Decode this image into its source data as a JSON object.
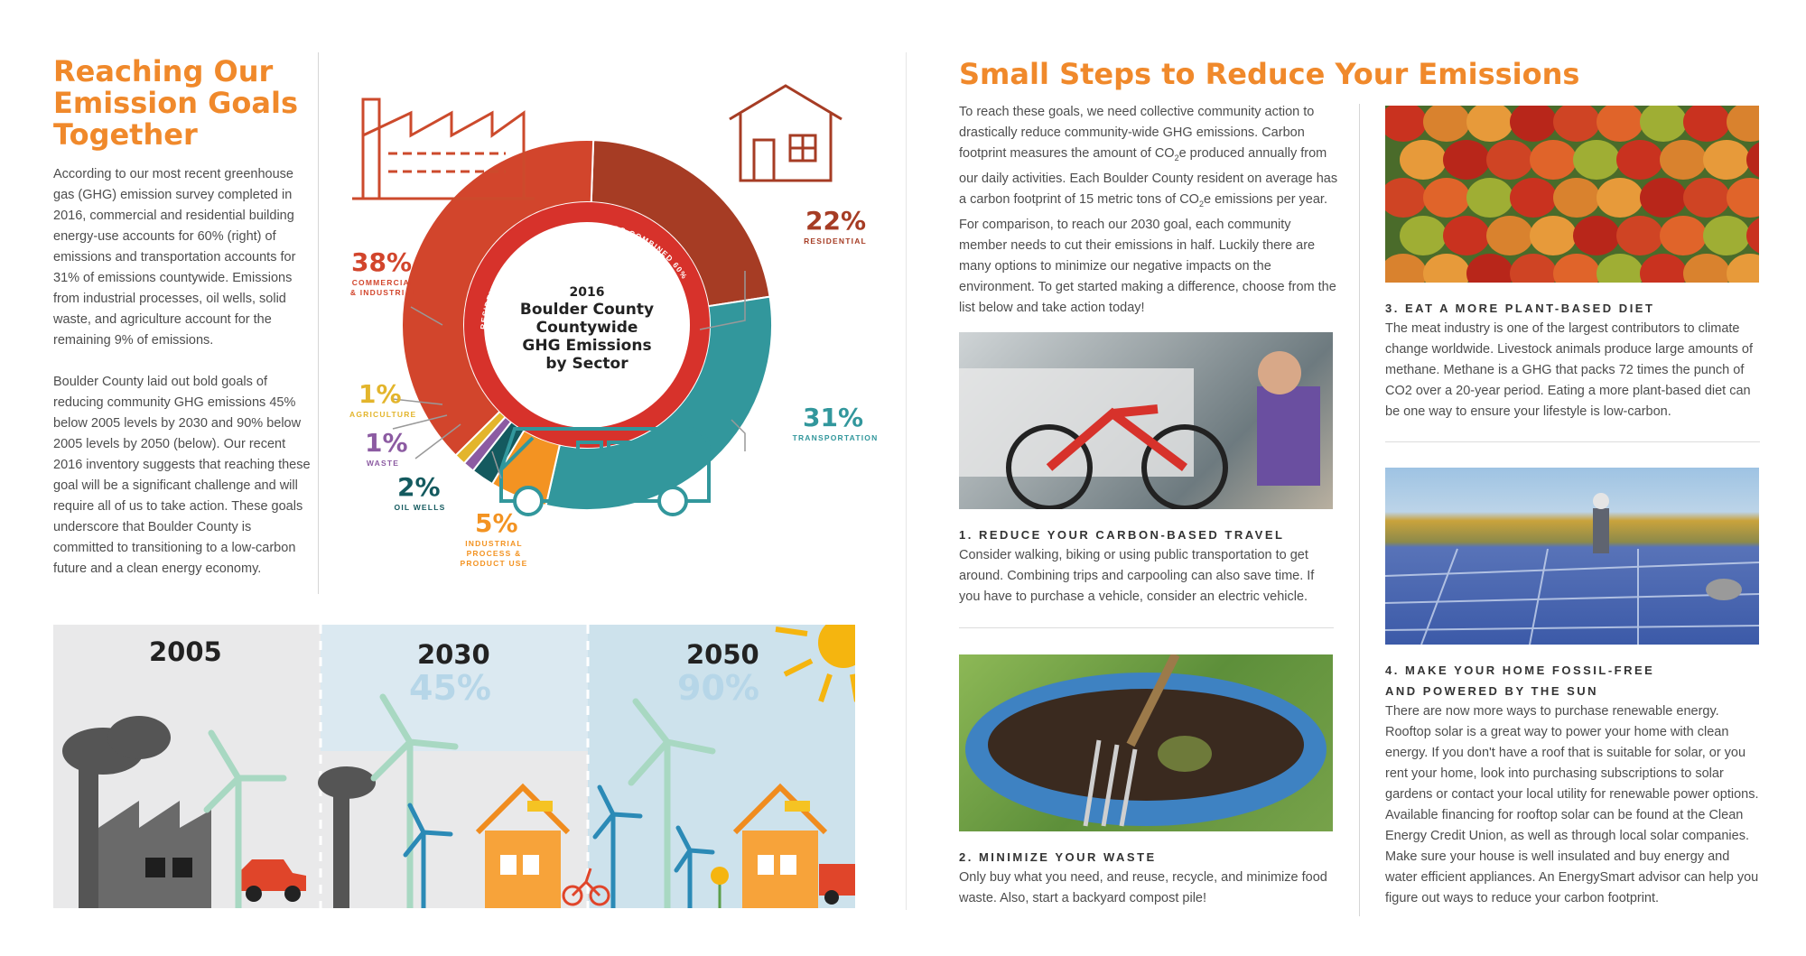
{
  "left": {
    "heading": "Reaching Our Emission Goals Together",
    "para1": "According to our most recent greenhouse gas (GHG) emission survey completed in 2016, commercial and residential building energy-use accounts for 60% (right) of emissions and transportation accounts for 31% of emissions countywide. Emissions from industrial processes, oil wells, solid waste, and agriculture account for the remaining 9% of emissions.",
    "para2": "Boulder County laid out bold goals of reducing community GHG emissions 45% below 2005 levels by 2030 and 90% below 2005 levels by 2050 (below). Our recent 2016 inventory suggests that reaching these goal will be a significant challenge and will require all of us to take action. These goals underscore that Boulder County is committed to transitioning to a low-carbon future and a clean energy economy."
  },
  "chart_data": {
    "type": "pie",
    "title": "2016 Boulder County Countywide GHG Emissions by Sector",
    "inner_ring_label": "RESIDENTIAL & COMMERCIAL BUILDINGS COMBINED 60%",
    "slices": [
      {
        "label": "COMMERCIAL & INDUSTRIAL",
        "pct_text": "38%",
        "value": 38,
        "color": "#d2452c"
      },
      {
        "label": "RESIDENTIAL",
        "pct_text": "22%",
        "value": 22,
        "color": "#a63c24"
      },
      {
        "label": "TRANSPORTATION",
        "pct_text": "31%",
        "value": 31,
        "color": "#32979c"
      },
      {
        "label": "INDUSTRIAL PROCESS & PRODUCT USE",
        "pct_text": "5%",
        "value": 5,
        "color": "#f39322"
      },
      {
        "label": "OIL WELLS",
        "pct_text": "2%",
        "value": 2,
        "color": "#145a5f"
      },
      {
        "label": "WASTE",
        "pct_text": "1%",
        "value": 1,
        "color": "#8c5ba2"
      },
      {
        "label": "AGRICULTURE",
        "pct_text": "1%",
        "value": 1,
        "color": "#e3b52c"
      }
    ]
  },
  "timeline": {
    "y2005": "2005",
    "y2030": "2030",
    "p2030": "45%",
    "y2050": "2050",
    "p2050": "90%"
  },
  "right": {
    "heading": "Small Steps to Reduce Your Emissions",
    "intro_html_parts": {
      "a": "To reach these goals, we need collective community action to drastically reduce community-wide GHG emissions. Carbon footprint measures the amount of CO",
      "sub1": "2",
      "b": "e produced annually from our daily activities. Each Boulder County resident on average has a carbon footprint of 15 metric tons of CO",
      "sub2": "2",
      "c": "e emissions per year. For comparison, to reach our 2030 goal, each community member needs to cut their emissions in half. Luckily there are many options to minimize our negative impacts on the environment. To get started making a difference, choose from the list below and take action today!"
    },
    "steps": [
      {
        "title": "1. REDUCE YOUR CARBON-BASED TRAVEL",
        "text": "Consider walking, biking or using public transportation to get around. Combining trips and carpooling can also save time. If you have to purchase a vehicle, consider an electric vehicle."
      },
      {
        "title": "2. MINIMIZE YOUR WASTE",
        "text": "Only buy what you need, and reuse, recycle, and minimize food waste. Also, start a backyard compost pile!"
      },
      {
        "title": "3. EAT A MORE PLANT-BASED DIET",
        "text": "The meat industry is one of the largest contributors to climate change worldwide. Livestock animals produce large amounts of methane. Methane is a GHG that packs 72 times the punch of CO2 over a 20-year period. Eating a more plant-based diet can be one way to ensure your lifestyle is low-carbon."
      },
      {
        "title": "4. MAKE YOUR HOME FOSSIL-FREE AND POWERED BY THE SUN",
        "text": "There are now more ways to purchase renewable energy. Rooftop solar is a great way to power your home with clean energy. If you don't have a roof that is suitable for solar, or you rent your home, look into purchasing subscriptions to solar gardens or contact your local utility for renewable power options. Available financing for rooftop solar can be found at the Clean Energy Credit Union, as well as through local solar companies. Make sure your house is well insulated and buy energy and water efficient appliances. An EnergySmart advisor can help you figure out ways to reduce your carbon footprint."
      }
    ]
  },
  "colors": {
    "accent_orange": "#f0892b",
    "teal": "#32979c",
    "dark_red": "#a63c24"
  }
}
